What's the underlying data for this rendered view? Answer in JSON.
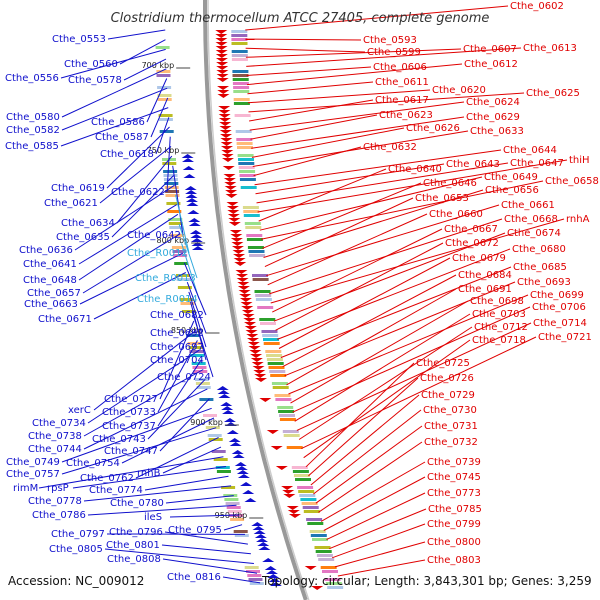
{
  "title": "Clostridium thermocellum ATCC 27405, complete genome",
  "footer": {
    "accession": "Accession: NC_009012",
    "summary": "Topology: circular; Length: 3,843,301 bp; Genes: 3,259"
  },
  "colors": {
    "reverse_strand": "#1010cc",
    "forward_strand": "#e00000",
    "rna_gene": "#33aadd",
    "backbone": "#999999"
  },
  "kbp_marks": [
    "700 kbp",
    "750 kbp",
    "800 kbp",
    "850 kbp",
    "900 kbp",
    "950 kbp"
  ],
  "left_labels": [
    {
      "text": "Cthe_0553",
      "kind": "gene"
    },
    {
      "text": "Cthe_0560",
      "kind": "gene"
    },
    {
      "text": "Cthe_0556",
      "kind": "gene"
    },
    {
      "text": "Cthe_0578",
      "kind": "gene"
    },
    {
      "text": "Cthe_0580",
      "kind": "gene"
    },
    {
      "text": "Cthe_0586",
      "kind": "gene"
    },
    {
      "text": "Cthe_0582",
      "kind": "gene"
    },
    {
      "text": "Cthe_0587",
      "kind": "gene"
    },
    {
      "text": "Cthe_0585",
      "kind": "gene"
    },
    {
      "text": "Cthe_0618",
      "kind": "gene"
    },
    {
      "text": "Cthe_0619",
      "kind": "gene"
    },
    {
      "text": "Cthe_0622",
      "kind": "gene"
    },
    {
      "text": "Cthe_0621",
      "kind": "gene"
    },
    {
      "text": "Cthe_0634",
      "kind": "gene"
    },
    {
      "text": "Cthe_0642",
      "kind": "gene"
    },
    {
      "text": "Cthe_0635",
      "kind": "gene"
    },
    {
      "text": "Cthe_0636",
      "kind": "gene"
    },
    {
      "text": "Cthe_R0012",
      "kind": "rna"
    },
    {
      "text": "Cthe_0641",
      "kind": "gene"
    },
    {
      "text": "Cthe_0648",
      "kind": "gene"
    },
    {
      "text": "Cthe_R0013",
      "kind": "rna"
    },
    {
      "text": "Cthe_0657",
      "kind": "gene"
    },
    {
      "text": "Cthe_R0014",
      "kind": "rna"
    },
    {
      "text": "Cthe_0663",
      "kind": "gene"
    },
    {
      "text": "Cthe_0682",
      "kind": "gene"
    },
    {
      "text": "Cthe_0671",
      "kind": "gene"
    },
    {
      "text": "Cthe_0692",
      "kind": "gene"
    },
    {
      "text": "Cthe_0697",
      "kind": "gene"
    },
    {
      "text": "Cthe_0704",
      "kind": "gene"
    },
    {
      "text": "Cthe_0724",
      "kind": "gene"
    },
    {
      "text": "Cthe_0727",
      "kind": "gene"
    },
    {
      "text": "xerC",
      "kind": "gene"
    },
    {
      "text": "Cthe_0733",
      "kind": "gene"
    },
    {
      "text": "Cthe_0734",
      "kind": "gene"
    },
    {
      "text": "Cthe_0737",
      "kind": "gene"
    },
    {
      "text": "Cthe_0738",
      "kind": "gene"
    },
    {
      "text": "Cthe_0743",
      "kind": "gene"
    },
    {
      "text": "Cthe_0744",
      "kind": "gene"
    },
    {
      "text": "Cthe_0747",
      "kind": "gene"
    },
    {
      "text": "Cthe_0749",
      "kind": "gene"
    },
    {
      "text": "Cthe_0754",
      "kind": "gene"
    },
    {
      "text": "Cthe_0757",
      "kind": "gene"
    },
    {
      "text": "Cthe_0762",
      "kind": "gene"
    },
    {
      "text": "rnhB",
      "kind": "gene"
    },
    {
      "text": "rimM",
      "kind": "gene"
    },
    {
      "text": "rpsP",
      "kind": "gene"
    },
    {
      "text": "Cthe_0774",
      "kind": "gene"
    },
    {
      "text": "Cthe_0778",
      "kind": "gene"
    },
    {
      "text": "Cthe_0780",
      "kind": "gene"
    },
    {
      "text": "Cthe_0786",
      "kind": "gene"
    },
    {
      "text": "ileS",
      "kind": "gene"
    },
    {
      "text": "Cthe_0795",
      "kind": "gene"
    },
    {
      "text": "Cthe_0797",
      "kind": "gene"
    },
    {
      "text": "Cthe_0796",
      "kind": "gene"
    },
    {
      "text": "Cthe_0801",
      "kind": "gene"
    },
    {
      "text": "Cthe_0805",
      "kind": "gene"
    },
    {
      "text": "Cthe_0808",
      "kind": "gene"
    },
    {
      "text": "Cthe_0816",
      "kind": "gene"
    }
  ],
  "right_labels": [
    {
      "text": "Cthe_0602"
    },
    {
      "text": "Cthe_0593"
    },
    {
      "text": "Cthe_0599"
    },
    {
      "text": "Cthe_0607"
    },
    {
      "text": "Cthe_0613"
    },
    {
      "text": "Cthe_0606"
    },
    {
      "text": "Cthe_0612"
    },
    {
      "text": "Cthe_0611"
    },
    {
      "text": "Cthe_0620"
    },
    {
      "text": "Cthe_0625"
    },
    {
      "text": "Cthe_0617"
    },
    {
      "text": "Cthe_0624"
    },
    {
      "text": "Cthe_0623"
    },
    {
      "text": "Cthe_0629"
    },
    {
      "text": "Cthe_0626"
    },
    {
      "text": "Cthe_0633"
    },
    {
      "text": "Cthe_0632"
    },
    {
      "text": "Cthe_0644"
    },
    {
      "text": "Cthe_0643"
    },
    {
      "text": "Cthe_0647"
    },
    {
      "text": "thiH"
    },
    {
      "text": "Cthe_0640"
    },
    {
      "text": "Cthe_0649"
    },
    {
      "text": "Cthe_0658"
    },
    {
      "text": "Cthe_0646"
    },
    {
      "text": "Cthe_0656"
    },
    {
      "text": "Cthe_0653"
    },
    {
      "text": "Cthe_0661"
    },
    {
      "text": "Cthe_0660"
    },
    {
      "text": "Cthe_0668"
    },
    {
      "text": "rnhA"
    },
    {
      "text": "Cthe_0667"
    },
    {
      "text": "Cthe_0674"
    },
    {
      "text": "Cthe_0672"
    },
    {
      "text": "Cthe_0680"
    },
    {
      "text": "Cthe_0679"
    },
    {
      "text": "Cthe_0685"
    },
    {
      "text": "Cthe_0684"
    },
    {
      "text": "Cthe_0693"
    },
    {
      "text": "Cthe_0691"
    },
    {
      "text": "Cthe_0699"
    },
    {
      "text": "Cthe_0698"
    },
    {
      "text": "Cthe_0706"
    },
    {
      "text": "Cthe_0703"
    },
    {
      "text": "Cthe_0714"
    },
    {
      "text": "Cthe_0712"
    },
    {
      "text": "Cthe_0721"
    },
    {
      "text": "Cthe_0718"
    },
    {
      "text": "Cthe_0725"
    },
    {
      "text": "Cthe_0726"
    },
    {
      "text": "Cthe_0729"
    },
    {
      "text": "Cthe_0730"
    },
    {
      "text": "Cthe_0731"
    },
    {
      "text": "Cthe_0732"
    },
    {
      "text": "Cthe_0739"
    },
    {
      "text": "Cthe_0745"
    },
    {
      "text": "Cthe_0773"
    },
    {
      "text": "Cthe_0785"
    },
    {
      "text": "Cthe_0799"
    },
    {
      "text": "Cthe_0800"
    },
    {
      "text": "Cthe_0803"
    }
  ]
}
